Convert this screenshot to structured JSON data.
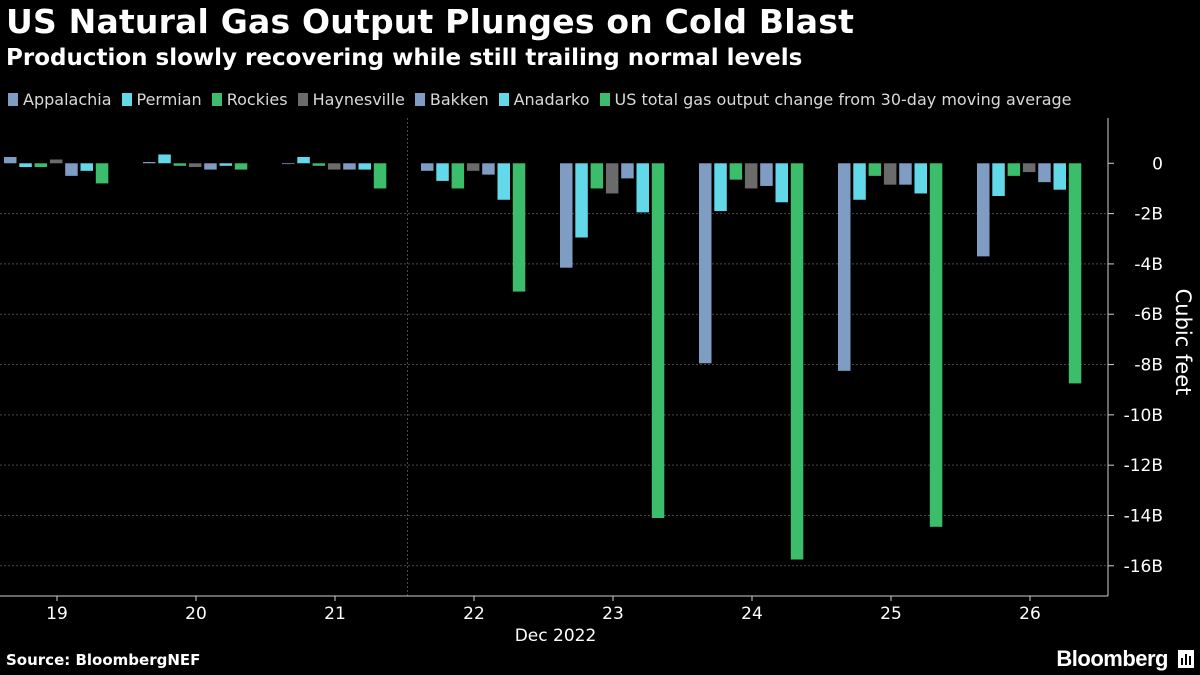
{
  "header": {
    "title": "US Natural Gas Output Plunges on Cold Blast",
    "subtitle": "Production slowly recovering while still trailing normal levels"
  },
  "footer": {
    "source": "Source: BloombergNEF",
    "brand": "Bloomberg"
  },
  "colors": {
    "background": "#000000",
    "grid": "#4a4a4a",
    "axis": "#cfcfcf",
    "text": "#ffffff"
  },
  "chart_data": {
    "type": "bar",
    "title": "US Natural Gas Output Plunges on Cold Blast",
    "subtitle": "Production slowly recovering while still trailing normal levels",
    "categories": [
      "19",
      "20",
      "21",
      "22",
      "23",
      "24",
      "25",
      "26"
    ],
    "xlabel": "Dec 2022",
    "ylabel": "Cubic feet",
    "ylim": [
      -17.2,
      1.8
    ],
    "yticks": [
      0,
      -2,
      -4,
      -6,
      -8,
      -10,
      -12,
      -14,
      -16
    ],
    "ytick_labels": [
      "0",
      "-2B",
      "-4B",
      "-6B",
      "-8B",
      "-10B",
      "-12B",
      "-14B",
      "-16B"
    ],
    "grid": true,
    "y_axis_side": "right",
    "legend_position": "top",
    "series": [
      {
        "name": "Appalachia",
        "color": "#7f9dc2",
        "values": [
          0.25,
          0.05,
          0.0,
          -0.3,
          -4.15,
          -7.95,
          -8.25,
          -3.7
        ]
      },
      {
        "name": "Permian",
        "color": "#62d8e9",
        "values": [
          -0.15,
          0.35,
          0.25,
          -0.7,
          -2.95,
          -1.9,
          -1.45,
          -1.3
        ]
      },
      {
        "name": "Rockies",
        "color": "#3bbd6b",
        "values": [
          -0.15,
          -0.1,
          -0.1,
          -1.0,
          -1.0,
          -0.65,
          -0.5,
          -0.5
        ]
      },
      {
        "name": "Haynesville",
        "color": "#6b6b6b",
        "values": [
          0.15,
          -0.15,
          -0.25,
          -0.3,
          -1.2,
          -1.0,
          -0.85,
          -0.35
        ]
      },
      {
        "name": "Bakken",
        "color": "#7f9dc2",
        "values": [
          -0.5,
          -0.25,
          -0.25,
          -0.45,
          -0.6,
          -0.9,
          -0.85,
          -0.75
        ]
      },
      {
        "name": "Anadarko",
        "color": "#62d8e9",
        "values": [
          -0.3,
          -0.1,
          -0.25,
          -1.45,
          -1.95,
          -1.55,
          -1.2,
          -1.05
        ]
      },
      {
        "name": "US total gas output change from 30-day moving average",
        "color": "#3bbd6b",
        "values": [
          -0.8,
          -0.25,
          -1.0,
          -5.1,
          -14.1,
          -15.75,
          -14.45,
          -8.75
        ]
      }
    ]
  }
}
